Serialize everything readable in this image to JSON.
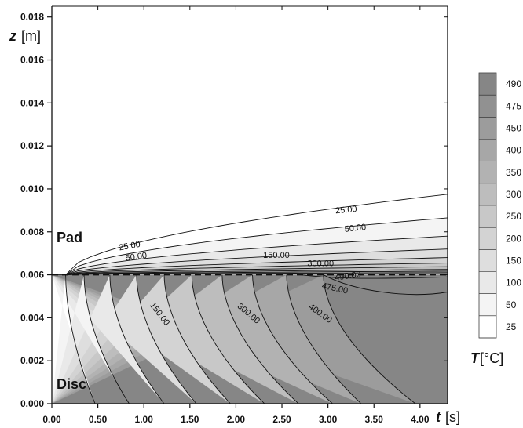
{
  "chart_data": {
    "type": "contour",
    "x_axis": {
      "symbol": "t",
      "unit": "[s]",
      "range": [
        0.0,
        4.3
      ],
      "ticks": [
        "0.00",
        "0.50",
        "1.00",
        "1.50",
        "2.00",
        "2.50",
        "3.00",
        "3.50",
        "4.00"
      ]
    },
    "y_axis": {
      "symbol": "z",
      "unit": "[m]",
      "range": [
        0.0,
        0.0185
      ],
      "ticks": [
        "0.000",
        "0.002",
        "0.004",
        "0.006",
        "0.008",
        "0.010",
        "0.012",
        "0.014",
        "0.016",
        "0.018"
      ]
    },
    "regions": [
      {
        "name": "Pad"
      },
      {
        "name": "Disc"
      }
    ],
    "interface": {
      "z": 0.006,
      "style": "dashed"
    },
    "colorbar": {
      "symbol": "T",
      "unit": "[°C]",
      "levels": [
        25,
        50,
        100,
        150,
        200,
        250,
        300,
        350,
        400,
        450,
        475,
        490
      ],
      "labels": [
        "25",
        "50",
        "100",
        "150",
        "200",
        "250",
        "300",
        "350",
        "400",
        "450",
        "475",
        "490"
      ],
      "gray_from": "#ffffff",
      "gray_to": "#868686"
    },
    "disc_contours": [
      {
        "level": 50,
        "t_top": 0.15,
        "t_bottom": 0.47
      },
      {
        "level": 100,
        "t_top": 0.35,
        "t_bottom": 0.84
      },
      {
        "level": 150,
        "t_top": 0.63,
        "t_bottom": 1.22
      },
      {
        "level": 200,
        "t_top": 0.92,
        "t_bottom": 1.57
      },
      {
        "level": 250,
        "t_top": 1.22,
        "t_bottom": 1.94
      },
      {
        "level": 300,
        "t_top": 1.52,
        "t_bottom": 2.31
      },
      {
        "level": 350,
        "t_top": 1.85,
        "t_bottom": 2.68
      },
      {
        "level": 400,
        "t_top": 2.18,
        "t_bottom": 3.05
      },
      {
        "level": 450,
        "t_top": 2.55,
        "t_bottom": 3.36
      },
      {
        "level": 475,
        "t_top": 2.95,
        "t_bottom": 3.95
      }
    ],
    "pad_contours": [
      {
        "level": 25,
        "z_end": 0.00975
      },
      {
        "level": 50,
        "z_end": 0.00865
      },
      {
        "level": 100,
        "z_end": 0.0078
      },
      {
        "level": 150,
        "z_end": 0.0072
      },
      {
        "level": 200,
        "z_end": 0.0068
      },
      {
        "level": 250,
        "z_end": 0.00655
      },
      {
        "level": 300,
        "z_end": 0.00638
      },
      {
        "level": 350,
        "z_end": 0.00625
      },
      {
        "level": 400,
        "z_end": 0.00617
      },
      {
        "level": 450,
        "z_end": 0.0061
      }
    ],
    "contour_labels": [
      {
        "text": "25.00",
        "t": 3.2,
        "z": 0.0089,
        "angle": -5
      },
      {
        "text": "50.00",
        "t": 3.3,
        "z": 0.00805,
        "angle": -6
      },
      {
        "text": "25.00",
        "t": 0.85,
        "z": 0.00722,
        "angle": -10
      },
      {
        "text": "50.00",
        "t": 0.92,
        "z": 0.00672,
        "angle": -8
      },
      {
        "text": "150.00",
        "t": 2.44,
        "z": 0.00678,
        "angle": 0
      },
      {
        "text": "300.00",
        "t": 2.92,
        "z": 0.0064,
        "angle": 0
      },
      {
        "text": "490.00",
        "t": 3.22,
        "z": 0.00582,
        "angle": -8
      },
      {
        "text": "475.00",
        "t": 3.07,
        "z": 0.00525,
        "angle": 12
      },
      {
        "text": "150.00",
        "t": 1.15,
        "z": 0.0041,
        "angle": 52
      },
      {
        "text": "300.00",
        "t": 2.12,
        "z": 0.0041,
        "angle": 40
      },
      {
        "text": "400.00",
        "t": 2.9,
        "z": 0.0041,
        "angle": 36
      }
    ]
  }
}
